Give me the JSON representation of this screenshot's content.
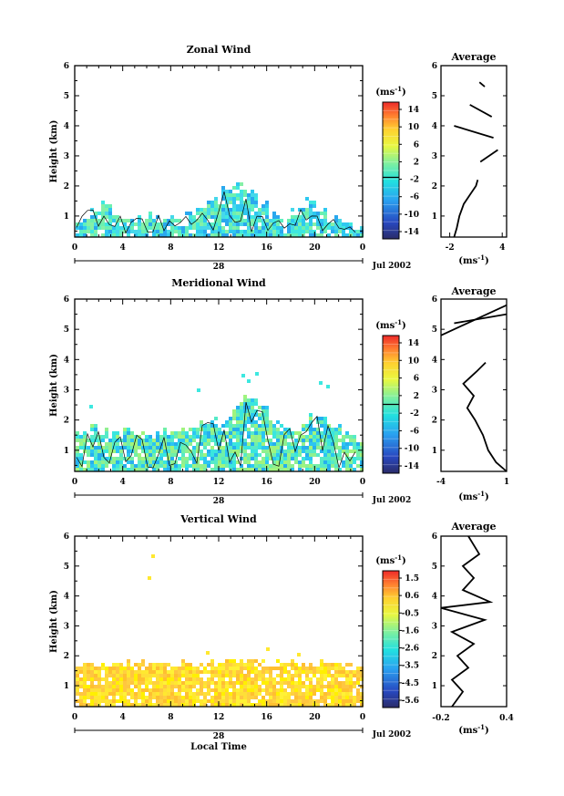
{
  "x_ticks": [
    "0",
    "4",
    "8",
    "12",
    "16",
    "20",
    "0"
  ],
  "day_label": "28",
  "date_label": "Jul 2002",
  "x_axis_label": "Local Time",
  "y_axis_label": "Height (km)",
  "colorbar_unit": "(ms",
  "unit_exponent": "-1",
  "panels": [
    {
      "title": "Zonal Wind",
      "colorbar_ticks": [
        "14",
        "10",
        "6",
        "2",
        "-2",
        "-6",
        "-10",
        "-14"
      ],
      "colorbar_zero_frac": 0.55,
      "average_title": "Average",
      "average_ticks": [
        "-2",
        "4"
      ]
    },
    {
      "title": "Meridional Wind",
      "colorbar_ticks": [
        "14",
        "10",
        "6",
        "2",
        "-2",
        "-6",
        "-10",
        "-14"
      ],
      "colorbar_zero_frac": 0.5,
      "average_title": "Average",
      "average_ticks": [
        "-4",
        "1"
      ]
    },
    {
      "title": "Vertical Wind",
      "colorbar_ticks": [
        "1.5",
        "0.6",
        "-0.5",
        "-1.6",
        "-2.6",
        "-3.5",
        "-4.5",
        "-5.6"
      ],
      "colorbar_zero_frac": null,
      "average_title": "Average",
      "average_ticks": [
        "-0.2",
        "0.4"
      ]
    }
  ],
  "chart_data": [
    {
      "type": "heatmap",
      "title": "Zonal Wind",
      "x_range": [
        0,
        24
      ],
      "ylabel": "Height (km)",
      "ylim": [
        0.3,
        6
      ],
      "y_ticks": [
        1,
        2,
        3,
        4,
        5,
        6
      ],
      "colorbar_label": "(ms-1)",
      "colorbar_range": [
        -16,
        16
      ],
      "approx_top_height_km": [
        1.0,
        1.3,
        1.5,
        1.0,
        0.9,
        1.0,
        1.1,
        1.0,
        0.9,
        1.2,
        1.4,
        1.6,
        2.0,
        2.1,
        1.9,
        1.4,
        1.1,
        0.9,
        1.3,
        1.6,
        1.3,
        1.0,
        0.8,
        0.7
      ],
      "profile": {
        "title": "Average",
        "xlabel": "(ms-1)",
        "xlim": [
          -3,
          4.5
        ],
        "x_ticks": [
          -2,
          4
        ],
        "points": [
          [
            -1.5,
            0.3
          ],
          [
            -1.2,
            0.6
          ],
          [
            -0.9,
            1.0
          ],
          [
            -0.4,
            1.4
          ],
          [
            0.3,
            1.7
          ],
          [
            1.0,
            2.0
          ],
          [
            1.2,
            2.2
          ]
        ],
        "upper_segments": [
          [
            [
              1.5,
              2.8
            ],
            [
              3.5,
              3.2
            ]
          ],
          [
            [
              -1.5,
              4.0
            ],
            [
              3.0,
              3.6
            ]
          ],
          [
            [
              0.3,
              4.7
            ],
            [
              2.8,
              4.3
            ]
          ],
          [
            [
              1.4,
              5.45
            ],
            [
              2.0,
              5.3
            ]
          ]
        ]
      }
    },
    {
      "type": "heatmap",
      "title": "Meridional Wind",
      "x_range": [
        0,
        24
      ],
      "ylabel": "Height (km)",
      "ylim": [
        0.3,
        6
      ],
      "y_ticks": [
        1,
        2,
        3,
        4,
        5,
        6
      ],
      "colorbar_label": "(ms-1)",
      "colorbar_range": [
        -16,
        16
      ],
      "approx_top_height_km": [
        1.6,
        1.8,
        1.7,
        1.6,
        1.7,
        1.5,
        1.6,
        1.7,
        1.8,
        1.7,
        1.9,
        2.0,
        2.2,
        2.6,
        2.8,
        2.5,
        2.0,
        1.8,
        1.9,
        2.1,
        2.2,
        1.9,
        1.6,
        1.4
      ],
      "profile": {
        "title": "Average",
        "xlabel": "(ms-1)",
        "xlim": [
          -4,
          1
        ],
        "x_ticks": [
          -4,
          1
        ],
        "points": [
          [
            1.0,
            0.3
          ],
          [
            0.2,
            0.6
          ],
          [
            -0.4,
            1.0
          ],
          [
            -0.8,
            1.5
          ],
          [
            -1.4,
            2.0
          ],
          [
            -2.0,
            2.4
          ],
          [
            -1.5,
            2.8
          ],
          [
            -2.3,
            3.2
          ],
          [
            -1.3,
            3.6
          ],
          [
            -0.6,
            3.9
          ]
        ],
        "upper_segments": [
          [
            [
              -4.0,
              4.8
            ],
            [
              1.0,
              5.8
            ]
          ],
          [
            [
              -3.0,
              5.2
            ],
            [
              1.0,
              5.5
            ]
          ]
        ]
      }
    },
    {
      "type": "heatmap",
      "title": "Vertical Wind",
      "x_range": [
        0,
        24
      ],
      "xlabel": "Local Time",
      "ylabel": "Height (km)",
      "ylim": [
        0.3,
        6
      ],
      "y_ticks": [
        1,
        2,
        3,
        4,
        5,
        6
      ],
      "colorbar_label": "(ms-1)",
      "colorbar_range": [
        -6,
        2
      ],
      "approx_top_height_km": [
        1.8,
        1.8,
        1.8,
        1.8,
        1.8,
        1.8,
        1.8,
        1.8,
        1.8,
        1.8,
        1.8,
        1.8,
        1.9,
        1.9,
        1.9,
        1.8,
        1.8,
        1.8,
        1.8,
        1.8,
        1.8,
        1.8,
        1.8,
        1.8
      ],
      "profile": {
        "title": "Average",
        "xlabel": "(ms-1)",
        "xlim": [
          -0.2,
          0.4
        ],
        "x_ticks": [
          -0.2,
          0.4
        ],
        "points": [
          [
            -0.1,
            0.3
          ],
          [
            0.0,
            0.8
          ],
          [
            -0.1,
            1.2
          ],
          [
            0.05,
            1.6
          ],
          [
            -0.05,
            2.0
          ],
          [
            0.1,
            2.4
          ],
          [
            -0.1,
            2.8
          ],
          [
            0.2,
            3.2
          ],
          [
            -0.2,
            3.6
          ],
          [
            0.25,
            3.8
          ],
          [
            0.0,
            4.2
          ],
          [
            0.1,
            4.6
          ],
          [
            0.0,
            5.0
          ],
          [
            0.15,
            5.4
          ],
          [
            0.05,
            6.0
          ]
        ]
      }
    }
  ]
}
